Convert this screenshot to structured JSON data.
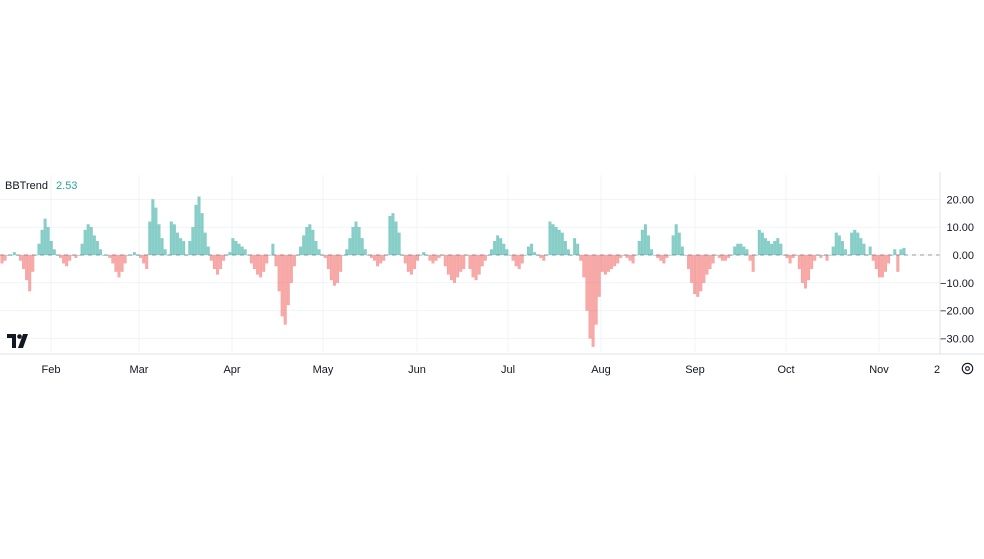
{
  "indicator": {
    "name": "BBTrend",
    "value": "2.53"
  },
  "icons": {
    "logo": "tradingview-logo-icon",
    "settings": "settings-gear-icon"
  },
  "colors": {
    "positive": "#26a69a",
    "negative": "#ef5350",
    "value_text": "#26a69a"
  },
  "chart_data": {
    "type": "area",
    "title": "",
    "xlabel": "",
    "ylabel": "",
    "x_ticks": [
      "Feb",
      "Mar",
      "Apr",
      "May",
      "Jun",
      "Jul",
      "Aug",
      "Sep",
      "Oct",
      "Nov",
      "2"
    ],
    "y_ticks": [
      "20.00",
      "10.00",
      "0.00",
      "−10.00",
      "−20.00",
      "−30.00"
    ],
    "ylim": [
      -32,
      24
    ],
    "zero_line": "dashed",
    "grid": true,
    "series": [
      {
        "values": [
          -3,
          -2,
          0,
          0,
          1,
          0,
          -2,
          -5,
          -9,
          -13,
          -6,
          0,
          4,
          9,
          13,
          10,
          5,
          2,
          0,
          -1,
          -3,
          -4,
          -2,
          0,
          -1,
          0,
          4,
          9,
          11,
          10,
          7,
          5,
          2,
          0,
          0,
          -1,
          -3,
          -6,
          -8,
          -6,
          -3,
          0,
          0,
          1,
          0,
          -1,
          -3,
          -5,
          12,
          20,
          17,
          11,
          6,
          2,
          0,
          12,
          11,
          8,
          6,
          5,
          0,
          5,
          10,
          18,
          21,
          15,
          8,
          3,
          -2,
          -5,
          -7,
          -5,
          -2,
          0,
          1,
          6,
          5,
          4,
          3,
          2,
          0,
          -3,
          -5,
          -7,
          -8,
          -6,
          -3,
          0,
          4,
          -4,
          -13,
          -22,
          -25,
          -18,
          -10,
          -4,
          0,
          3,
          7,
          10,
          11,
          9,
          5,
          2,
          0,
          -1,
          -5,
          -9,
          -11,
          -10,
          -6,
          0,
          2,
          6,
          10,
          12,
          10,
          6,
          2,
          0,
          -1,
          -2,
          -4,
          -3,
          -2,
          0,
          14,
          15,
          12,
          8,
          0,
          -3,
          -6,
          -7,
          -5,
          -2,
          0,
          1,
          0,
          -2,
          -3,
          -2,
          -1,
          0,
          -4,
          -7,
          -9,
          -10,
          -8,
          -6,
          -5,
          0,
          -5,
          -8,
          -9,
          -7,
          -4,
          -2,
          0,
          2,
          5,
          7,
          6,
          4,
          2,
          0,
          -2,
          -4,
          -5,
          -3,
          0,
          3,
          4,
          1,
          0,
          -1,
          -2,
          0,
          12,
          11,
          10,
          9,
          8,
          5,
          2,
          0,
          6,
          4,
          -2,
          -8,
          -20,
          -30,
          -33,
          -25,
          -15,
          -6,
          -7,
          -6,
          -5,
          -4,
          -3,
          -1,
          0,
          -1,
          -2,
          -3,
          0,
          5,
          9,
          11,
          7,
          2,
          0,
          -1,
          -2,
          -3,
          -1,
          0,
          7,
          11,
          8,
          3,
          0,
          -5,
          -10,
          -14,
          -15,
          -13,
          -10,
          -7,
          -5,
          -3,
          0,
          -1,
          -2,
          -2,
          -1,
          0,
          3,
          4,
          4,
          3,
          2,
          -2,
          -6,
          0,
          9,
          8,
          6,
          5,
          4,
          5,
          6,
          4,
          0,
          -1,
          -3,
          -1,
          0,
          -5,
          -10,
          -12,
          -9,
          -5,
          -2,
          0,
          -1,
          0,
          -2,
          0,
          3,
          8,
          7,
          5,
          2,
          0,
          8,
          9,
          8,
          6,
          4,
          0,
          3,
          -2,
          -5,
          -8,
          -8,
          -6,
          -3,
          0,
          2,
          -6,
          2,
          2.53
        ]
      }
    ]
  }
}
